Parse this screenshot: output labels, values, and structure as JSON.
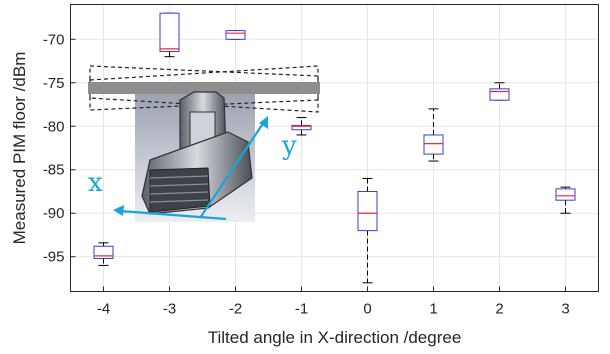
{
  "chart_data": {
    "type": "box",
    "xlabel": "Tilted angle in X-direction /degree",
    "ylabel": "Measured PIM floor /dBm",
    "categories": [
      "-4",
      "-3",
      "-2",
      "-1",
      "0",
      "1",
      "2",
      "3"
    ],
    "x": [
      -4,
      -3,
      -2,
      -1,
      0,
      1,
      2,
      3
    ],
    "xlim": [
      -4.5,
      3.5
    ],
    "ylim": [
      -99,
      -66
    ],
    "yticks": [
      -95,
      -90,
      -85,
      -80,
      -75,
      -70
    ],
    "grid": true,
    "boxes": [
      {
        "x": -4,
        "min": -96.0,
        "q1": -95.2,
        "median": -94.9,
        "q3": -93.8,
        "max": -93.4
      },
      {
        "x": -3,
        "min": -72.0,
        "q1": -71.4,
        "median": -71.1,
        "q3": -67.0,
        "max": -67.0
      },
      {
        "x": -2,
        "min": -70.0,
        "q1": -70.0,
        "median": -69.3,
        "q3": -69.0,
        "max": -69.0
      },
      {
        "x": -1,
        "min": -81.0,
        "q1": -80.4,
        "median": -80.0,
        "q3": -79.9,
        "max": -79.0
      },
      {
        "x": 0,
        "min": -98.0,
        "q1": -92.0,
        "median": -90.0,
        "q3": -87.5,
        "max": -86.0
      },
      {
        "x": 1,
        "min": -84.0,
        "q1": -83.2,
        "median": -82.0,
        "q3": -81.0,
        "max": -78.0
      },
      {
        "x": 2,
        "min": -77.0,
        "q1": -77.0,
        "median": -76.0,
        "q3": -75.7,
        "max": -75.0
      },
      {
        "x": 3,
        "min": -90.0,
        "q1": -88.5,
        "median": -88.0,
        "q3": -87.2,
        "max": -87.0
      }
    ],
    "colors": {
      "box": "#3b3bd6",
      "median": "#e8283c",
      "whisker": "#000000",
      "grid": "#e6e6e6"
    }
  },
  "inset": {
    "x_label": "x",
    "y_label": "y",
    "arrow_color": "#1aa3dc"
  }
}
